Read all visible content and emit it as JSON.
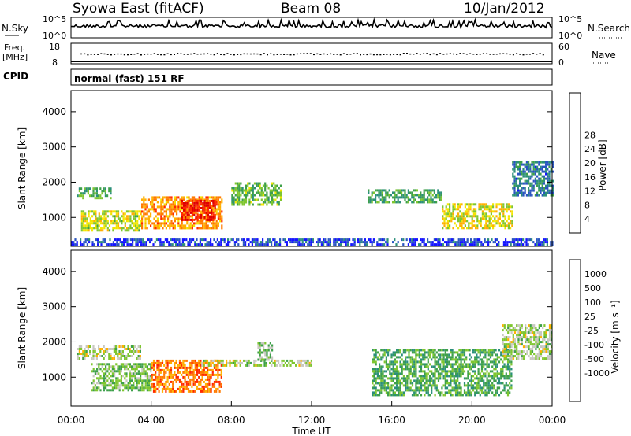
{
  "header": {
    "station": "Syowa East (fitACF)",
    "beam": "Beam 08",
    "date": "10/Jan/2012"
  },
  "summary_panels": {
    "nsky": {
      "label": "N.Sky",
      "ticks": [
        "10^5",
        "10^0"
      ],
      "right_label": "N.Search",
      "right_ticks": [
        "10^5",
        "10^0"
      ]
    },
    "freq": {
      "label_line1": "Freq.",
      "label_line2": "[MHz]",
      "ticks": [
        "18",
        "8"
      ],
      "right_label": "Nave",
      "right_ticks": [
        "60",
        "0"
      ]
    },
    "cpid": {
      "label": "CPID",
      "text": "normal (fast) 151 RF"
    }
  },
  "axes": {
    "ylabel": "Slant Range [km]",
    "yticks": [
      "1000",
      "2000",
      "3000",
      "4000"
    ],
    "xticks": [
      "00:00",
      "04:00",
      "08:00",
      "12:00",
      "16:00",
      "20:00",
      "00:00"
    ],
    "xlabel": "Time UT"
  },
  "colorbars": {
    "power": {
      "label": "Power [dB]",
      "ticks": [
        "4",
        "8",
        "12",
        "16",
        "20",
        "24",
        "28"
      ],
      "colors": [
        "#1414ff",
        "#2a55c0",
        "#2b8f7a",
        "#3ea04a",
        "#7fc62f",
        "#f2e600",
        "#ffb000",
        "#ff7a00",
        "#ff2a00",
        "#e00000"
      ]
    },
    "velocity": {
      "label": "Velocity [m s⁻¹]",
      "ticks": [
        "1000",
        "500",
        "100",
        "25",
        "-25",
        "-100",
        "-500",
        "-1000"
      ],
      "colors": [
        "#1414ff",
        "#2a55c0",
        "#2b8f7a",
        "#3ea04a",
        "#7fc62f",
        "#c8c8c0",
        "#ffb000",
        "#ff7a00",
        "#ff2a00",
        "#e00000"
      ]
    }
  },
  "chart_data": [
    {
      "type": "heatmap",
      "title": "Power [dB]",
      "xlabel": "Time UT",
      "ylabel": "Slant Range [km]",
      "xlim": [
        "00:00",
        "24:00"
      ],
      "ylim": [
        180,
        4600
      ],
      "zlim": [
        3,
        30
      ],
      "regions": [
        {
          "t_start": 0.3,
          "t_end": 2.0,
          "range_km": [
            1550,
            1850
          ],
          "value": 13
        },
        {
          "t_start": 0.5,
          "t_end": 3.5,
          "range_km": [
            600,
            1200
          ],
          "value": 17
        },
        {
          "t_start": 3.5,
          "t_end": 7.5,
          "range_km": [
            700,
            1600
          ],
          "value": 22
        },
        {
          "t_start": 5.5,
          "t_end": 7.2,
          "range_km": [
            900,
            1500
          ],
          "value": 27
        },
        {
          "t_start": 8.0,
          "t_end": 10.5,
          "range_km": [
            1350,
            2000
          ],
          "value": 14
        },
        {
          "t_start": 14.8,
          "t_end": 18.5,
          "range_km": [
            1400,
            1800
          ],
          "value": 12
        },
        {
          "t_start": 18.5,
          "t_end": 22.0,
          "range_km": [
            700,
            1400
          ],
          "value": 18
        },
        {
          "t_start": 22.0,
          "t_end": 24.0,
          "range_km": [
            1600,
            2600
          ],
          "value": 9
        },
        {
          "t_start": 0.0,
          "t_end": 24.0,
          "range_km": [
            200,
            400
          ],
          "value": 6
        }
      ]
    },
    {
      "type": "heatmap",
      "title": "Velocity [m s⁻¹]",
      "xlabel": "Time UT",
      "ylabel": "Slant Range [km]",
      "xlim": [
        "00:00",
        "24:00"
      ],
      "ylim": [
        180,
        4600
      ],
      "zlim": [
        -1000,
        1000
      ],
      "regions": [
        {
          "t_start": 0.3,
          "t_end": 3.5,
          "range_km": [
            1500,
            1900
          ],
          "value": 0
        },
        {
          "t_start": 1.0,
          "t_end": 4.0,
          "range_km": [
            600,
            1400
          ],
          "value": 150
        },
        {
          "t_start": 4.0,
          "t_end": 7.5,
          "range_km": [
            600,
            1500
          ],
          "value": -500
        },
        {
          "t_start": 6.5,
          "t_end": 12.0,
          "range_km": [
            1350,
            1500
          ],
          "value": 0
        },
        {
          "t_start": 9.3,
          "t_end": 10.0,
          "range_km": [
            1500,
            2000
          ],
          "value": 100
        },
        {
          "t_start": 15.0,
          "t_end": 22.0,
          "range_km": [
            500,
            1800
          ],
          "value": 300
        },
        {
          "t_start": 21.5,
          "t_end": 24.0,
          "range_km": [
            1500,
            2500
          ],
          "value": 0
        }
      ]
    }
  ]
}
